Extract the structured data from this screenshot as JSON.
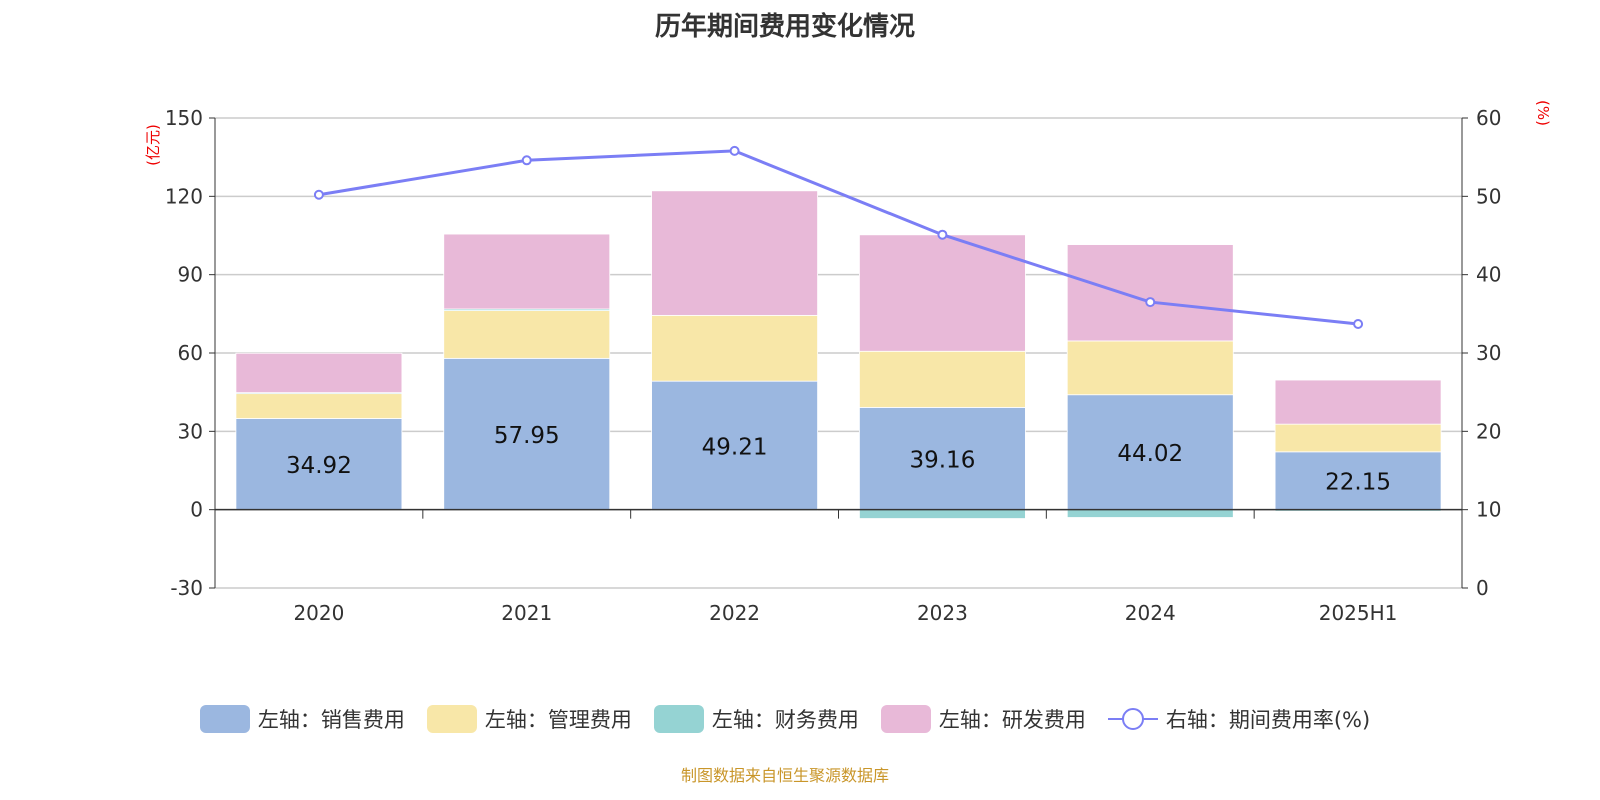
{
  "title": "历年期间费用变化情况",
  "source": "制图数据来自恒生聚源数据库",
  "chart_data": {
    "type": "bar",
    "stacked": true,
    "title": "历年期间费用变化情况",
    "categories": [
      "2020",
      "2021",
      "2022",
      "2023",
      "2024",
      "2025H1"
    ],
    "left_axis": {
      "unit": "(亿元)",
      "range": [
        -30,
        150
      ],
      "ticks": [
        -30,
        0,
        30,
        60,
        90,
        120,
        150
      ]
    },
    "right_axis": {
      "unit": "(%)",
      "range": [
        0,
        60
      ],
      "ticks": [
        0,
        10,
        20,
        30,
        40,
        50,
        60
      ]
    },
    "grid": true,
    "legend_position": "bottom",
    "series": [
      {
        "name": "左轴：销售费用",
        "axis": "left",
        "type": "bar",
        "color": "#9bb7e0",
        "values": [
          34.92,
          57.95,
          49.21,
          39.16,
          44.02,
          22.15
        ],
        "labels": [
          "34.92",
          "57.95",
          "49.21",
          "39.16",
          "44.02",
          "22.15"
        ]
      },
      {
        "name": "左轴：管理费用",
        "axis": "left",
        "type": "bar",
        "color": "#f8e7a8",
        "values": [
          9.8,
          18.3,
          25.2,
          21.5,
          20.6,
          10.6
        ]
      },
      {
        "name": "左轴：财务费用",
        "axis": "left",
        "type": "bar",
        "color": "#95d3d3",
        "values": [
          0.1,
          0.6,
          -0.3,
          -3.4,
          -3.0,
          -0.6
        ]
      },
      {
        "name": "左轴：研发费用",
        "axis": "left",
        "type": "bar",
        "color": "#e8b9d8",
        "values": [
          15.1,
          28.7,
          47.7,
          44.6,
          36.9,
          16.9
        ]
      },
      {
        "name": "右轴：期间费用率(%)",
        "axis": "right",
        "type": "line",
        "color": "#7b7ef5",
        "values": [
          50.2,
          54.6,
          55.8,
          45.1,
          36.5,
          33.7
        ]
      }
    ]
  }
}
